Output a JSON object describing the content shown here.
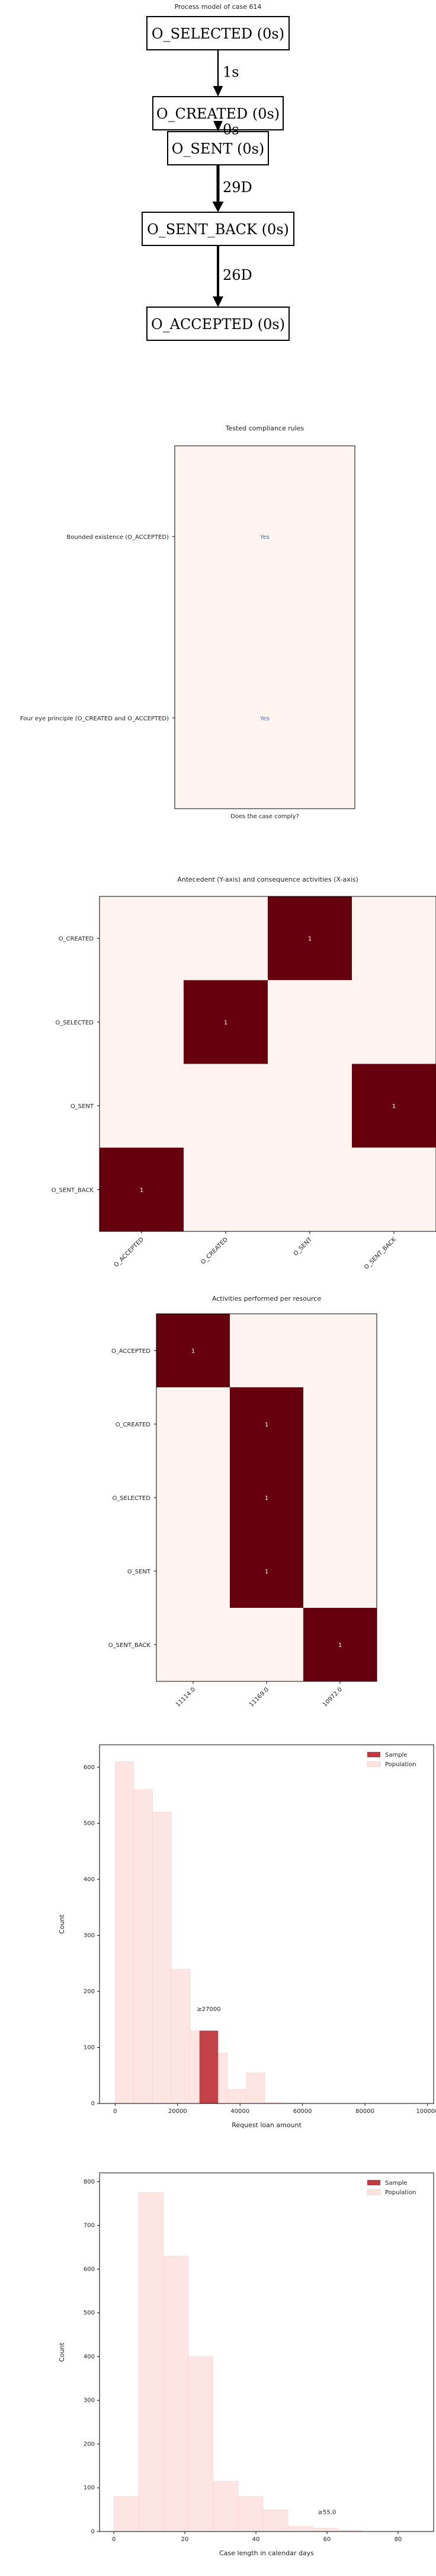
{
  "chart_data": [
    {
      "type": "diagram",
      "title": "Process model of case 614",
      "nodes": [
        "O_SELECTED (0s)",
        "O_CREATED (0s)",
        "O_SENT (0s)",
        "O_SENT_BACK (0s)",
        "O_ACCEPTED (0s)"
      ],
      "edges": [
        {
          "from": 0,
          "to": 1,
          "label": "1s"
        },
        {
          "from": 1,
          "to": 2,
          "label": "0s"
        },
        {
          "from": 2,
          "to": 3,
          "label": "29D"
        },
        {
          "from": 3,
          "to": 4,
          "label": "26D"
        }
      ]
    },
    {
      "type": "heatmap",
      "title": "Tested compliance rules",
      "xlabel": "Does the case comply?",
      "ylabel": "",
      "rows": [
        "Bounded existence (O_ACCEPTED)",
        "Four eye principle (O_CREATED and O_ACCEPTED)"
      ],
      "columns": [
        ""
      ],
      "cells": [
        [
          "Yes"
        ],
        [
          "Yes"
        ]
      ]
    },
    {
      "type": "heatmap",
      "title": "Antecedent (Y-axis) and consequence activities (X-axis)",
      "rows": [
        "O_CREATED",
        "O_SELECTED",
        "O_SENT",
        "O_SENT_BACK"
      ],
      "columns": [
        "O_ACCEPTED",
        "O_CREATED",
        "O_SENT",
        "O_SENT_BACK"
      ],
      "values": [
        [
          0,
          0,
          1,
          0
        ],
        [
          0,
          1,
          0,
          0
        ],
        [
          0,
          0,
          0,
          1
        ],
        [
          1,
          0,
          0,
          0
        ]
      ]
    },
    {
      "type": "heatmap",
      "title": "Activities performed per resource",
      "rows": [
        "O_ACCEPTED",
        "O_CREATED",
        "O_SELECTED",
        "O_SENT",
        "O_SENT_BACK"
      ],
      "columns": [
        "11114.0",
        "11169.0",
        "10972.0"
      ],
      "values": [
        [
          1,
          0,
          0
        ],
        [
          0,
          1,
          0
        ],
        [
          0,
          1,
          0
        ],
        [
          0,
          1,
          0
        ],
        [
          0,
          0,
          1
        ]
      ]
    },
    {
      "type": "bar",
      "xlabel": "Request loan amount",
      "ylabel": "Count",
      "xlim": [
        -5000,
        102000
      ],
      "ylim": [
        0,
        640
      ],
      "xticks": [
        "0",
        "20000",
        "40000",
        "60000",
        "80000",
        "100000"
      ],
      "yticks": [
        "0",
        "100",
        "200",
        "300",
        "400",
        "500",
        "600"
      ],
      "legend": "top-right",
      "series": [
        {
          "name": "Sample",
          "color": "#c0393f",
          "bins": [
            {
              "x0": 27000,
              "x1": 33000,
              "count": 130
            }
          ]
        },
        {
          "name": "Population",
          "color": "#fde3e0",
          "bins": [
            {
              "x0": 0,
              "x1": 6000,
              "count": 610
            },
            {
              "x0": 6000,
              "x1": 12000,
              "count": 560
            },
            {
              "x0": 12000,
              "x1": 18000,
              "count": 520
            },
            {
              "x0": 18000,
              "x1": 24000,
              "count": 240
            },
            {
              "x0": 24000,
              "x1": 30000,
              "count": 130
            },
            {
              "x0": 30000,
              "x1": 36000,
              "count": 90
            },
            {
              "x0": 36000,
              "x1": 42000,
              "count": 25
            },
            {
              "x0": 42000,
              "x1": 48000,
              "count": 55
            },
            {
              "x0": 48000,
              "x1": 54000,
              "count": 2
            },
            {
              "x0": 54000,
              "x1": 60000,
              "count": 1
            }
          ]
        }
      ],
      "annotation": {
        "text": "≥27000",
        "x": 30000,
        "y": 165
      }
    },
    {
      "type": "bar",
      "xlabel": "Case length in calendar days",
      "ylabel": "Count",
      "xlim": [
        -4,
        90
      ],
      "ylim": [
        0,
        820
      ],
      "xticks": [
        "0",
        "20",
        "40",
        "60",
        "80"
      ],
      "yticks": [
        "0",
        "100",
        "200",
        "300",
        "400",
        "500",
        "600",
        "700",
        "800"
      ],
      "legend": "top-right",
      "series": [
        {
          "name": "Sample",
          "color": "#c0393f",
          "bins": []
        },
        {
          "name": "Population",
          "color": "#fde3e0",
          "bins": [
            {
              "x0": 0,
              "x1": 7,
              "count": 80
            },
            {
              "x0": 7,
              "x1": 14,
              "count": 775
            },
            {
              "x0": 14,
              "x1": 21,
              "count": 630
            },
            {
              "x0": 21,
              "x1": 28,
              "count": 400
            },
            {
              "x0": 28,
              "x1": 35,
              "count": 115
            },
            {
              "x0": 35,
              "x1": 42,
              "count": 80
            },
            {
              "x0": 42,
              "x1": 49,
              "count": 50
            },
            {
              "x0": 49,
              "x1": 56,
              "count": 12
            },
            {
              "x0": 56,
              "x1": 63,
              "count": 8
            },
            {
              "x0": 63,
              "x1": 70,
              "count": 3
            }
          ]
        }
      ],
      "annotation": {
        "text": "≥55.0",
        "x": 60,
        "y": 40
      }
    }
  ],
  "colors": {
    "cell_empty": "#fff4ef",
    "cell_full": "#67000d",
    "cell_value_text": "#ffffff",
    "compliance_text": "#4a6fa5",
    "sample": "#c0393f",
    "population": "#fde3e0",
    "edge": "#000000"
  }
}
